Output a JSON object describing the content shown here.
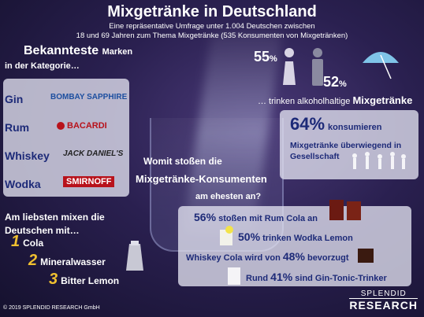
{
  "header": {
    "title": "Mixgetränke in Deutschland",
    "subtitle_line1": "Eine repräsentative Umfrage unter 1.004 Deutschen zwischen",
    "subtitle_line2": "18 und 69 Jahren zum Thema Mixgetränke (535 Konsumenten von Mixgetränken)"
  },
  "brands": {
    "heading_main": "Bekannteste",
    "heading_rest": "Marken",
    "heading_sub": "in der Kategorie…",
    "items": [
      {
        "category": "Gin",
        "brand": "BOMBAY SAPPHIRE"
      },
      {
        "category": "Rum",
        "brand": "BACARDI"
      },
      {
        "category": "Whiskey",
        "brand": "JACK DANIEL'S"
      },
      {
        "category": "Wodka",
        "brand": "SMIRNOFF"
      }
    ]
  },
  "gender": {
    "female_num": "55",
    "female_pct": "%",
    "male_num": "52",
    "male_pct": "%",
    "caption_prefix": "… trinken alkoholhaltige",
    "caption_bold": "Mixgetränke"
  },
  "social": {
    "num": "64%",
    "word": "konsumieren",
    "desc": "Mixgetränke überwiegend in Gesellschaft"
  },
  "question": {
    "line1": "Womit stoßen die",
    "line2": "Mixgetränke-Konsumenten",
    "line3": "am ehesten an?"
  },
  "answers": [
    {
      "pct": "56%",
      "text": "stoßen mit Rum Cola an"
    },
    {
      "pct": "50%",
      "text": "trinken Wodka Lemon"
    },
    {
      "pre": "Whiskey Cola wird von",
      "pct": "48%",
      "text": "bevorzugt"
    },
    {
      "pre": "Rund",
      "pct": "41%",
      "text": "sind Gin-Tonic-Trinker"
    }
  ],
  "mix": {
    "heading": "Am liebsten mixen die Deutschen mit…",
    "items": [
      {
        "rank": "1",
        "label": "Cola"
      },
      {
        "rank": "2",
        "label": "Mineralwasser"
      },
      {
        "rank": "3",
        "label": "Bitter Lemon"
      }
    ]
  },
  "footer": {
    "copyright": "© 2019 SPLENDID RESEARCH GmbH",
    "logo_line1": "SPLENDID",
    "logo_line2": "RESEARCH"
  },
  "colors": {
    "navy": "#1d2a78",
    "gold": "#f0c030",
    "panel": "#e1e1f0"
  }
}
